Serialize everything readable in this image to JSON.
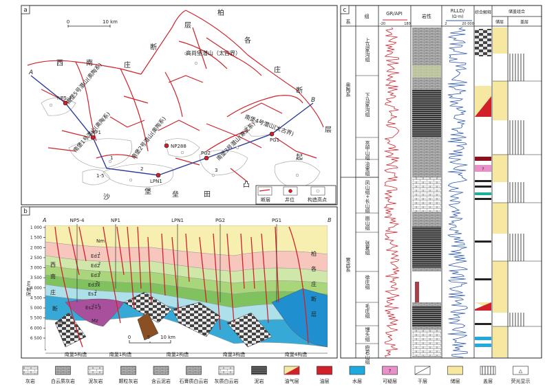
{
  "panel_a": {
    "label": "a",
    "scale_start": "0",
    "scale_end": "10 km",
    "section_start": "A",
    "section_end": "B",
    "wells": [
      "NP5-4",
      "NP1",
      "NP288",
      "LPN1",
      "PG2",
      "PG1"
    ],
    "structures": [
      {
        "text": "南堡5号潜山(奥陶系)"
      },
      {
        "text": "南堡1号潜山(奥陶系)"
      },
      {
        "text": "南堡2号潜山(奥陶系)"
      },
      {
        "text": "南堡3号潜山(寒武系)"
      },
      {
        "text": "南堡4号潜山(太古界)"
      }
    ],
    "structure_short": {
      "n1": "1",
      "n15": "1-5",
      "n2": "2",
      "n3": "3"
    },
    "regional": {
      "xi": "西",
      "nan1": "南",
      "zhuang1": "庄",
      "duan1": "断",
      "bai": "柏",
      "ge": "各",
      "zhuang2": "庄",
      "duan2": "断",
      "ceng1": "层",
      "ceng2": "层",
      "qi": "起",
      "tu": "凸",
      "tian": "田",
      "lei": "垒",
      "bao": "堡",
      "sha": "沙",
      "gaoshang": "高尚堡潜山（太古界）"
    },
    "legend": {
      "fault": "断层",
      "well": "井位",
      "high": "构造高点"
    }
  },
  "panel_b": {
    "label": "b",
    "ylabel": "深度/m",
    "depth_ticks": [
      "1 000",
      "1 500",
      "2 000",
      "2 500",
      "3 000",
      "3 500",
      "4 000",
      "4 500",
      "5 000",
      "5 500",
      "6 000",
      "6 500"
    ],
    "section_start": "A",
    "section_end": "B",
    "wells": [
      "NP5-4",
      "NP1",
      "LPN1",
      "PG2",
      "PG1"
    ],
    "layers": [
      "Nm",
      "Ed1",
      "Ed2",
      "Ed3",
      "Es1",
      "Es2+3",
      "Mz",
      "Ed3x"
    ],
    "layer_sup": {
      "Ed1": "1",
      "Ed2": "2",
      "Ed3": "3",
      "Ed3x": "3x",
      "Es1": "1",
      "Es2+3": "2+3"
    },
    "left_labels": [
      "西",
      "南",
      "庄",
      "断",
      "层"
    ],
    "right_labels": [
      "柏",
      "各",
      "庄",
      "断",
      "层"
    ],
    "scale_0": "0",
    "scale_5": "5",
    "scale_10": "10 km",
    "structures": [
      "南堡5构造",
      "南堡1构造",
      "南堡2构造",
      "南堡3构造",
      "南堡4构造"
    ]
  },
  "panel_c": {
    "label": "c",
    "headers": {
      "xi": "系",
      "zu": "组",
      "gr": "GR/API",
      "gr_min": "-20",
      "gr_max": "180",
      "lith": "岩性",
      "rlld": "RLLD/",
      "rlld_unit": "(Ω·m)",
      "rlld_min": "2",
      "rlld_max": "20 000",
      "interp": "综合解释",
      "combo": "储盖组合",
      "reservoir": "储层",
      "cap": "盖层"
    },
    "systems": [
      {
        "name": "奥陶系",
        "formations": [
          "上马家沟组",
          "下马家沟组",
          "亮甲山组",
          "冶里组"
        ]
      },
      {
        "name": "寒武系",
        "formations": [
          "凤山组+长山组",
          "崮山组",
          "张夏组",
          "徐庄组",
          "毛庄组",
          "馒头组",
          "府君山组"
        ]
      }
    ],
    "interp_marks": {
      "q": "?",
      "t": "△"
    }
  },
  "legend_bottom": [
    {
      "label": "灰岩",
      "icon": "limestone-icon"
    },
    {
      "label": "白云质灰岩",
      "icon": "dolomitic-limestone-icon"
    },
    {
      "label": "泥灰岩",
      "icon": "marl-icon"
    },
    {
      "label": "颗粒灰岩",
      "icon": "grain-limestone-icon"
    },
    {
      "label": "含云泥岩",
      "icon": "dolomite-mudstone-icon"
    },
    {
      "label": "石膏质白云岩",
      "icon": "gypsum-dolomite-icon"
    },
    {
      "label": "灰质白云岩",
      "icon": "calcareous-dolomite-icon"
    },
    {
      "label": "泥岩",
      "icon": "mudstone-icon"
    },
    {
      "label": "油气层",
      "icon": "oil-gas-layer-icon"
    },
    {
      "label": "油层",
      "icon": "oil-layer-icon"
    },
    {
      "label": "水层",
      "icon": "water-layer-icon"
    },
    {
      "label": "可疑层",
      "icon": "suspicious-layer-icon",
      "mark": "?"
    },
    {
      "label": "干层",
      "icon": "dry-layer-icon"
    },
    {
      "label": "储层",
      "icon": "reservoir-icon"
    },
    {
      "label": "盖层",
      "icon": "cap-icon"
    },
    {
      "label": "荧光显示",
      "icon": "fluorescence-icon",
      "mark": "△"
    }
  ],
  "colors": {
    "red": "#d0202a",
    "blue": "#2a55b0",
    "yellow": "#f6e8a0",
    "water": "#1ea9e0"
  }
}
